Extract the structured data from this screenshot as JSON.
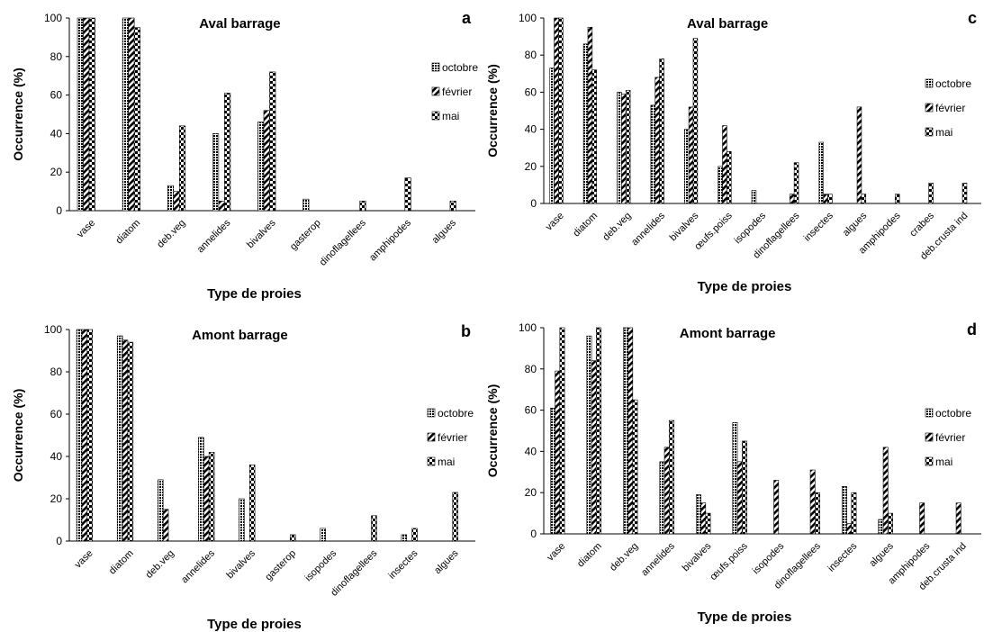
{
  "legend": {
    "octobre": "octobre",
    "fevrier": "février",
    "mai": "mai"
  },
  "chart_data": [
    {
      "type": "bar",
      "panel_letter": "a",
      "title": "Aval barrage",
      "xlabel": "Type de proies",
      "ylabel": "Occurrence (%)",
      "ylim": [
        0,
        100
      ],
      "yticks": [
        0,
        20,
        40,
        60,
        80,
        100
      ],
      "legend_position": "right",
      "categories": [
        "vase",
        "diatom",
        "deb.veg",
        "annelides",
        "bivalves",
        "gasterop",
        "dinoflagellees",
        "amphipodes",
        "algues"
      ],
      "series": [
        {
          "name": "octobre",
          "values": [
            100,
            100,
            13,
            40,
            46,
            6,
            0,
            0,
            0
          ]
        },
        {
          "name": "février",
          "values": [
            100,
            100,
            10,
            5,
            52,
            0,
            0,
            0,
            0
          ]
        },
        {
          "name": "mai",
          "values": [
            100,
            95,
            44,
            61,
            72,
            0,
            5,
            17,
            5
          ]
        }
      ]
    },
    {
      "type": "bar",
      "panel_letter": "b",
      "title": "Amont barrage",
      "xlabel": "Type de proies",
      "ylabel": "Occurrence (%)",
      "ylim": [
        0,
        100
      ],
      "yticks": [
        0,
        20,
        40,
        60,
        80,
        100
      ],
      "legend_position": "right",
      "categories": [
        "vase",
        "diatom",
        "deb.veg",
        "annelides",
        "bivalves",
        "gasterop",
        "isopodes",
        "dinoflagellees",
        "insectes",
        "algues"
      ],
      "series": [
        {
          "name": "octobre",
          "values": [
            100,
            97,
            29,
            49,
            20,
            0,
            6,
            0,
            3,
            0
          ]
        },
        {
          "name": "février",
          "values": [
            100,
            95,
            15,
            40,
            0,
            0,
            0,
            0,
            0,
            0
          ]
        },
        {
          "name": "mai",
          "values": [
            100,
            94,
            0,
            42,
            36,
            3,
            0,
            12,
            6,
            23
          ]
        }
      ]
    },
    {
      "type": "bar",
      "panel_letter": "c",
      "title": "Aval barrage",
      "xlabel": "Type de proies",
      "ylabel": "Occurrence (%)",
      "ylim": [
        0,
        100
      ],
      "yticks": [
        0,
        20,
        40,
        60,
        80,
        100
      ],
      "legend_position": "right",
      "categories": [
        "vase",
        "diatom",
        "deb.veg",
        "annelides",
        "bivalves",
        "œufs.poiss",
        "isopodes",
        "dinoflagellees",
        "insectes",
        "algues",
        "amphipodes",
        "crabes",
        "deb.crusta ind"
      ],
      "series": [
        {
          "name": "octobre",
          "values": [
            73,
            86,
            60,
            53,
            40,
            20,
            7,
            0,
            33,
            0,
            0,
            0,
            0
          ]
        },
        {
          "name": "février",
          "values": [
            100,
            95,
            59,
            68,
            52,
            42,
            0,
            5,
            5,
            52,
            0,
            0,
            0
          ]
        },
        {
          "name": "mai",
          "values": [
            100,
            72,
            61,
            78,
            89,
            28,
            0,
            22,
            5,
            5,
            5,
            11,
            11
          ]
        }
      ]
    },
    {
      "type": "bar",
      "panel_letter": "d",
      "title": "Amont barrage",
      "xlabel": "Type de proies",
      "ylabel": "Occurrence (%)",
      "ylim": [
        0,
        100
      ],
      "yticks": [
        0,
        20,
        40,
        60,
        80,
        100
      ],
      "legend_position": "right",
      "categories": [
        "vase",
        "diatom",
        "deb.veg",
        "annelides",
        "bivalves",
        "œufs.poiss",
        "isopodes",
        "dinoflagellees",
        "insectes",
        "algues",
        "amphipodes",
        "deb.crusta ind"
      ],
      "series": [
        {
          "name": "octobre",
          "values": [
            61,
            96,
            100,
            35,
            19,
            54,
            0,
            0,
            23,
            7,
            0,
            0
          ]
        },
        {
          "name": "février",
          "values": [
            79,
            84,
            100,
            42,
            15,
            35,
            26,
            31,
            5,
            42,
            15,
            15
          ]
        },
        {
          "name": "mai",
          "values": [
            100,
            100,
            65,
            55,
            10,
            45,
            0,
            20,
            20,
            10,
            0,
            0
          ]
        }
      ]
    }
  ]
}
